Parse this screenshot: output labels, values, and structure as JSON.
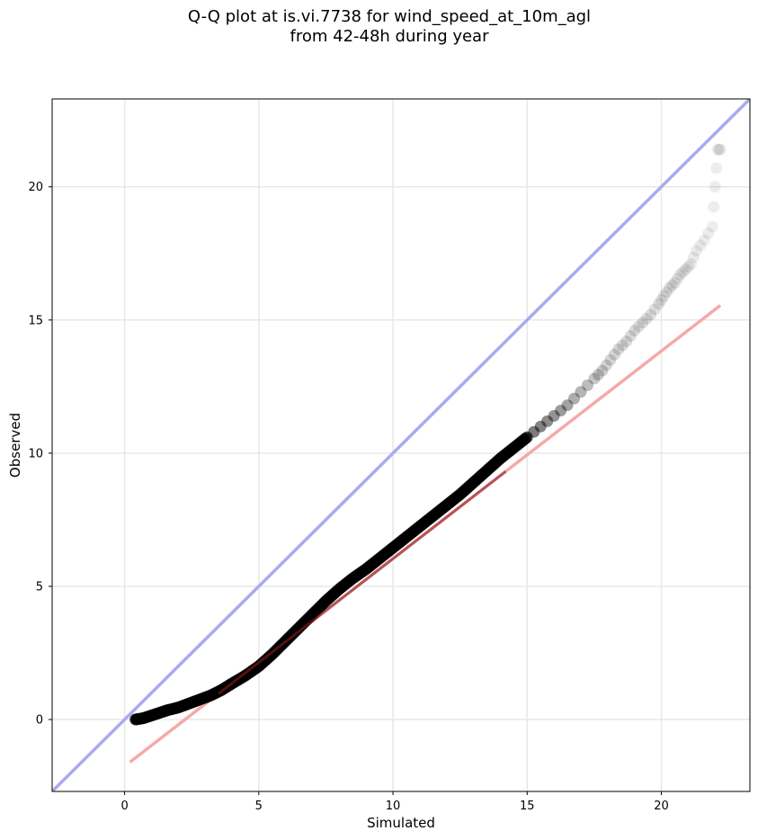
{
  "title": {
    "line1": "Q-Q plot at is.vi.7738 for wind_speed_at_10m_agl",
    "line2": "from 42-48h during year"
  },
  "chart_data": {
    "type": "scatter",
    "title": "Q-Q plot at is.vi.7738 for wind_speed_at_10m_agl\nfrom 42-48h during year",
    "xlabel": "Simulated",
    "ylabel": "Observed",
    "xlim": [
      -2.7,
      23.3
    ],
    "ylim": [
      -2.7,
      23.3
    ],
    "xticks": [
      0,
      5,
      10,
      15,
      20
    ],
    "yticks": [
      0,
      5,
      10,
      15,
      20
    ],
    "grid": true,
    "colors": {
      "points": "#000000",
      "identity_line": "#aaaaf0",
      "fit_line": "#f5a9a9",
      "fit_line_dense": "#8b1a1a",
      "grid": "#e8e8e8"
    },
    "series": [
      {
        "kind": "points",
        "x": [
          0.4,
          0.7,
          1.0,
          1.3,
          1.6,
          2.0,
          2.4,
          2.8,
          3.2,
          3.6,
          4.0,
          4.5,
          5.0,
          5.5,
          6.0,
          6.5,
          7.0,
          7.5,
          8.0,
          8.5,
          9.0,
          9.5,
          10.0,
          10.5,
          11.0,
          11.5,
          12.0,
          12.5,
          13.0,
          13.5,
          14.0,
          14.5,
          15.0,
          15.5,
          16.0,
          16.5,
          17.0,
          17.5,
          17.8,
          18.1,
          18.4,
          18.7,
          19.0,
          19.3,
          19.6,
          19.9,
          20.1,
          20.3,
          20.5,
          20.7,
          20.9,
          21.1,
          21.3,
          21.6,
          21.9,
          22.0,
          22.1,
          22.2
        ],
        "y": [
          0.0,
          0.05,
          0.15,
          0.25,
          0.35,
          0.45,
          0.6,
          0.75,
          0.9,
          1.1,
          1.35,
          1.65,
          2.0,
          2.45,
          2.95,
          3.45,
          3.95,
          4.45,
          4.9,
          5.3,
          5.65,
          6.05,
          6.45,
          6.85,
          7.25,
          7.65,
          8.05,
          8.45,
          8.9,
          9.35,
          9.8,
          10.2,
          10.6,
          11.0,
          11.4,
          11.8,
          12.3,
          12.8,
          13.1,
          13.5,
          13.9,
          14.2,
          14.6,
          14.9,
          15.2,
          15.6,
          15.9,
          16.2,
          16.4,
          16.7,
          16.9,
          17.1,
          17.6,
          18.0,
          18.5,
          20.0,
          21.4,
          21.4
        ]
      },
      {
        "kind": "identity_line",
        "x": [
          -2.7,
          23.3
        ],
        "y": [
          -2.7,
          23.3
        ]
      },
      {
        "kind": "fit_line",
        "x": [
          0.2,
          22.2
        ],
        "y": [
          -1.6,
          15.55
        ]
      }
    ]
  }
}
